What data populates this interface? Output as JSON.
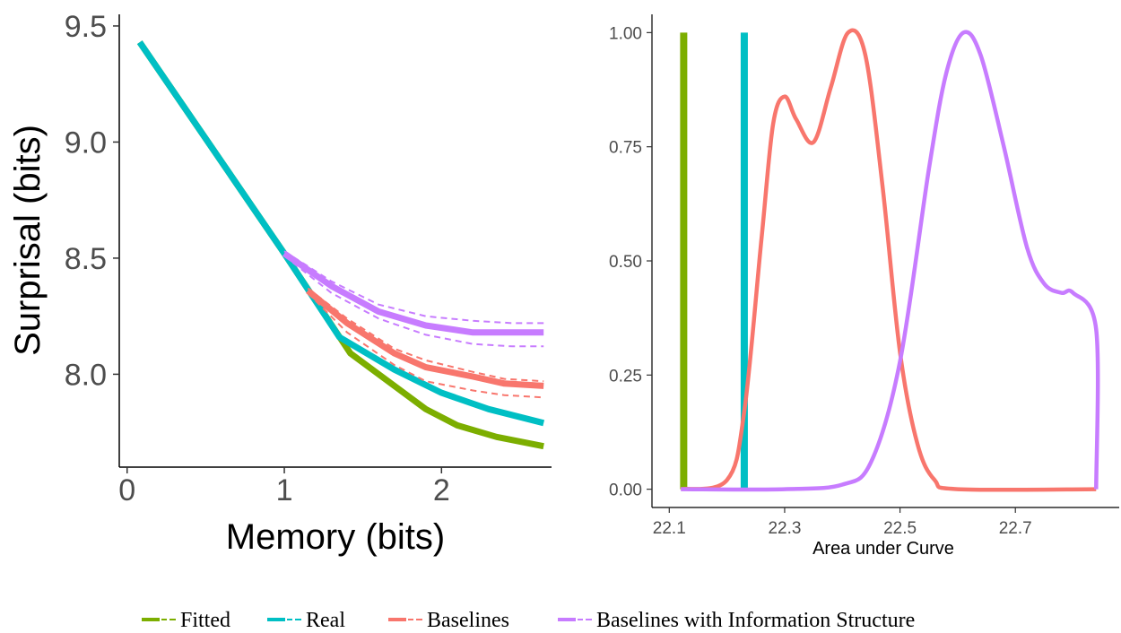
{
  "colors": {
    "fitted": "#7cae00",
    "real": "#00bfc4",
    "baselines": "#f8766d",
    "baselines_info": "#c77cff"
  },
  "legend": {
    "items": [
      {
        "label": "Fitted",
        "color": "#7cae00"
      },
      {
        "label": "Real",
        "color": "#00bfc4"
      },
      {
        "label": "Baselines",
        "color": "#f8766d"
      },
      {
        "label": "Baselines with Information Structure",
        "color": "#c77cff"
      }
    ]
  },
  "chart_data": [
    {
      "type": "line",
      "xlabel": "Memory (bits)",
      "ylabel": "Surprisal (bits)",
      "xlim": [
        -0.05,
        2.7
      ],
      "ylim": [
        7.6,
        9.55
      ],
      "xticks": [
        0,
        1,
        2
      ],
      "yticks": [
        8.0,
        8.5,
        9.0,
        9.5
      ],
      "ytick_labels": [
        "8.0",
        "8.5",
        "9.0",
        "9.5"
      ],
      "grid": false,
      "series": [
        {
          "name": "Fitted",
          "color": "#7cae00",
          "style": "solid",
          "x": [
            0.08,
            1.0,
            1.42,
            1.9,
            2.1,
            2.35,
            2.65
          ],
          "y": [
            9.43,
            8.52,
            8.09,
            7.85,
            7.78,
            7.73,
            7.69
          ]
        },
        {
          "name": "Real",
          "color": "#00bfc4",
          "style": "solid",
          "x": [
            0.08,
            1.0,
            1.35,
            1.7,
            2.0,
            2.3,
            2.65
          ],
          "y": [
            9.43,
            8.52,
            8.16,
            8.02,
            7.92,
            7.85,
            7.79
          ]
        },
        {
          "name": "Baselines",
          "color": "#f8766d",
          "style": "solid",
          "x": [
            1.15,
            1.4,
            1.7,
            1.9,
            2.2,
            2.4,
            2.65
          ],
          "y": [
            8.36,
            8.22,
            8.09,
            8.03,
            7.99,
            7.96,
            7.95
          ]
        },
        {
          "name": "Baselines (upper CI)",
          "color": "#f8766d",
          "style": "dashed",
          "x": [
            1.15,
            1.4,
            1.7,
            1.9,
            2.2,
            2.4,
            2.65
          ],
          "y": [
            8.37,
            8.24,
            8.11,
            8.06,
            8.01,
            7.98,
            7.97
          ]
        },
        {
          "name": "Baselines (lower CI)",
          "color": "#f8766d",
          "style": "dashed",
          "x": [
            1.15,
            1.4,
            1.7,
            1.9,
            2.2,
            2.4,
            2.65
          ],
          "y": [
            8.35,
            8.18,
            8.04,
            7.97,
            7.93,
            7.91,
            7.9
          ]
        },
        {
          "name": "Baselines with Information Structure",
          "color": "#c77cff",
          "style": "solid",
          "x": [
            1.0,
            1.3,
            1.6,
            1.9,
            2.2,
            2.45,
            2.65
          ],
          "y": [
            8.52,
            8.38,
            8.27,
            8.21,
            8.18,
            8.18,
            8.18
          ]
        },
        {
          "name": "Baselines with Information Structure (upper CI)",
          "color": "#c77cff",
          "style": "dashed",
          "x": [
            1.0,
            1.3,
            1.6,
            1.9,
            2.2,
            2.45,
            2.65
          ],
          "y": [
            8.53,
            8.4,
            8.3,
            8.25,
            8.23,
            8.22,
            8.22
          ]
        },
        {
          "name": "Baselines with Information Structure (lower CI)",
          "color": "#c77cff",
          "style": "dashed",
          "x": [
            1.0,
            1.3,
            1.6,
            1.9,
            2.2,
            2.45,
            2.65
          ],
          "y": [
            8.51,
            8.35,
            8.24,
            8.17,
            8.13,
            8.12,
            8.12
          ]
        }
      ]
    },
    {
      "type": "line",
      "xlabel": "Area under Curve",
      "ylabel": "",
      "xlim": [
        22.07,
        22.88
      ],
      "ylim": [
        -0.04,
        1.04
      ],
      "xticks": [
        22.1,
        22.3,
        22.5,
        22.7
      ],
      "xtick_labels": [
        "22.1",
        "22.3",
        "22.5",
        "22.7"
      ],
      "yticks": [
        0.0,
        0.25,
        0.5,
        0.75,
        1.0
      ],
      "ytick_labels": [
        "0.00",
        "0.25",
        "0.50",
        "0.75",
        "1.00"
      ],
      "grid": false,
      "series": [
        {
          "name": "Fitted",
          "color": "#7cae00",
          "kind": "vline",
          "x": 22.125,
          "y": [
            0.0,
            1.0
          ]
        },
        {
          "name": "Real",
          "color": "#00bfc4",
          "kind": "vline",
          "x": 22.23,
          "y": [
            0.0,
            1.0
          ]
        },
        {
          "name": "Baselines",
          "color": "#f8766d",
          "kind": "density",
          "x": [
            22.12,
            22.2,
            22.23,
            22.26,
            22.28,
            22.3,
            22.32,
            22.35,
            22.38,
            22.41,
            22.44,
            22.47,
            22.5,
            22.53,
            22.56,
            22.6,
            22.84
          ],
          "y": [
            0.0,
            0.02,
            0.17,
            0.55,
            0.8,
            0.86,
            0.81,
            0.76,
            0.88,
            1.0,
            0.95,
            0.66,
            0.3,
            0.1,
            0.02,
            0.0,
            0.0
          ]
        },
        {
          "name": "Baselines with Information Structure",
          "color": "#c77cff",
          "kind": "density",
          "x": [
            22.12,
            22.3,
            22.4,
            22.45,
            22.5,
            22.55,
            22.58,
            22.61,
            22.64,
            22.68,
            22.72,
            22.75,
            22.78,
            22.8,
            22.84,
            22.84
          ],
          "y": [
            0.0,
            0.0,
            0.01,
            0.06,
            0.28,
            0.7,
            0.91,
            1.0,
            0.95,
            0.75,
            0.53,
            0.45,
            0.43,
            0.43,
            0.35,
            0.0
          ]
        }
      ]
    }
  ]
}
